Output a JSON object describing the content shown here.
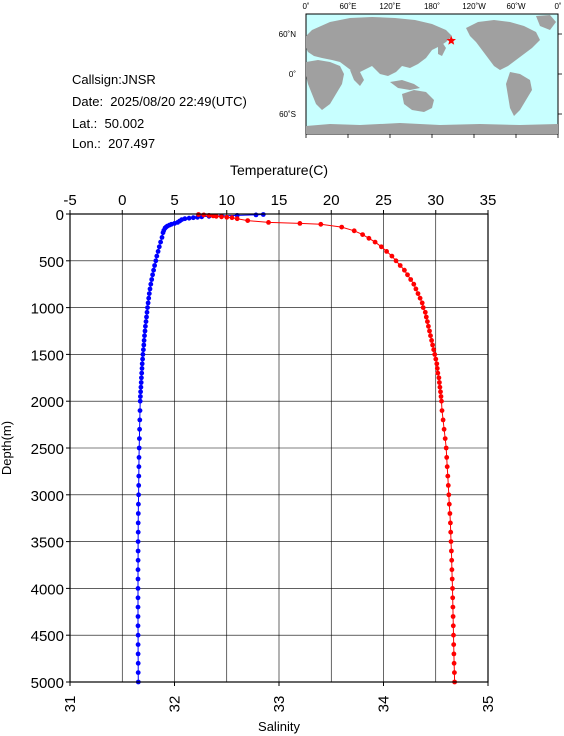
{
  "station": {
    "callsign": "Callsign:JNSR",
    "date": "Date:  2025/08/20 22:49(UTC)",
    "lat": "Lat.:  50.002",
    "lon": "Lon.:  207.497"
  },
  "map": {
    "top_labels": [
      "0˚",
      "60˚E",
      "120˚E",
      "180˚",
      "120˚W",
      "60˚W",
      "0˚"
    ],
    "left_labels": [
      "60˚N",
      "0˚",
      "60˚S"
    ],
    "ocean_color": "#c8ffff",
    "land_color": "#a0a0a0",
    "marker_color": "#ff0000",
    "marker_lat": 50.002,
    "marker_lon": 207.497
  },
  "chart_data": {
    "type": "scatter",
    "top_axis": {
      "label": "Temperature(C)",
      "range": [
        -5,
        35
      ],
      "ticks": [
        "-5",
        "0",
        "5",
        "10",
        "15",
        "20",
        "25",
        "30",
        "35"
      ],
      "tick_values": [
        -5,
        0,
        5,
        10,
        15,
        20,
        25,
        30,
        35
      ]
    },
    "bottom_axis": {
      "label": "Salinity",
      "range": [
        31,
        35
      ],
      "ticks": [
        "31",
        "32",
        "33",
        "34",
        "35"
      ],
      "tick_values": [
        31,
        32,
        33,
        34,
        35
      ]
    },
    "y_axis": {
      "label": "Depth(m)",
      "range": [
        0,
        5000
      ],
      "inverted": true,
      "ticks": [
        "0",
        "500",
        "1000",
        "1500",
        "2000",
        "2500",
        "3000",
        "3500",
        "4000",
        "4500",
        "5000"
      ],
      "tick_values": [
        0,
        500,
        1000,
        1500,
        2000,
        2500,
        3000,
        3500,
        4000,
        4500,
        5000
      ]
    },
    "grid": true,
    "series": [
      {
        "axis": "temperature",
        "color": "#0000ff",
        "points": [
          [
            13.5,
            5
          ],
          [
            12.8,
            10
          ],
          [
            11,
            15
          ],
          [
            9.5,
            20
          ],
          [
            8.3,
            25
          ],
          [
            7.6,
            30
          ],
          [
            7.2,
            35
          ],
          [
            6.8,
            40
          ],
          [
            6.4,
            45
          ],
          [
            6.0,
            50
          ],
          [
            5.7,
            60
          ],
          [
            5.5,
            75
          ],
          [
            5.3,
            90
          ],
          [
            5.0,
            100
          ],
          [
            4.7,
            110
          ],
          [
            4.5,
            120
          ],
          [
            4.3,
            130
          ],
          [
            4.2,
            140
          ],
          [
            4.1,
            150
          ],
          [
            3.98,
            175
          ],
          [
            3.9,
            200
          ],
          [
            3.8,
            250
          ],
          [
            3.67,
            300
          ],
          [
            3.55,
            350
          ],
          [
            3.43,
            400
          ],
          [
            3.31,
            450
          ],
          [
            3.21,
            500
          ],
          [
            3.1,
            550
          ],
          [
            3.0,
            600
          ],
          [
            2.9,
            650
          ],
          [
            2.82,
            700
          ],
          [
            2.73,
            750
          ],
          [
            2.66,
            800
          ],
          [
            2.59,
            850
          ],
          [
            2.53,
            900
          ],
          [
            2.47,
            950
          ],
          [
            2.42,
            1000
          ],
          [
            2.37,
            1050
          ],
          [
            2.32,
            1100
          ],
          [
            2.27,
            1150
          ],
          [
            2.22,
            1200
          ],
          [
            2.18,
            1250
          ],
          [
            2.13,
            1300
          ],
          [
            2.09,
            1350
          ],
          [
            2.06,
            1400
          ],
          [
            2.02,
            1450
          ],
          [
            1.98,
            1500
          ],
          [
            1.95,
            1550
          ],
          [
            1.91,
            1600
          ],
          [
            1.89,
            1650
          ],
          [
            1.86,
            1700
          ],
          [
            1.83,
            1750
          ],
          [
            1.81,
            1800
          ],
          [
            1.78,
            1850
          ],
          [
            1.76,
            1900
          ],
          [
            1.74,
            1950
          ],
          [
            1.72,
            2000
          ],
          [
            1.7,
            2100
          ],
          [
            1.68,
            2200
          ],
          [
            1.66,
            2300
          ],
          [
            1.64,
            2400
          ],
          [
            1.62,
            2500
          ],
          [
            1.6,
            2600
          ],
          [
            1.59,
            2700
          ],
          [
            1.58,
            2800
          ],
          [
            1.57,
            2900
          ],
          [
            1.56,
            3000
          ],
          [
            1.55,
            3100
          ],
          [
            1.54,
            3200
          ],
          [
            1.53,
            3300
          ],
          [
            1.53,
            3400
          ],
          [
            1.52,
            3500
          ],
          [
            1.52,
            3600
          ],
          [
            1.52,
            3700
          ],
          [
            1.51,
            3800
          ],
          [
            1.51,
            3900
          ],
          [
            1.51,
            4000
          ],
          [
            1.51,
            4100
          ],
          [
            1.51,
            4200
          ],
          [
            1.51,
            4300
          ],
          [
            1.51,
            4400
          ],
          [
            1.52,
            4500
          ],
          [
            1.52,
            4600
          ],
          [
            1.52,
            4700
          ],
          [
            1.53,
            4800
          ],
          [
            1.53,
            4900
          ],
          [
            1.54,
            5000
          ]
        ]
      },
      {
        "axis": "salinity",
        "color": "#ff0000",
        "points": [
          [
            32.23,
            5
          ],
          [
            32.28,
            10
          ],
          [
            32.33,
            15
          ],
          [
            32.37,
            20
          ],
          [
            32.4,
            25
          ],
          [
            32.45,
            30
          ],
          [
            32.5,
            35
          ],
          [
            32.55,
            40
          ],
          [
            32.6,
            50
          ],
          [
            32.7,
            70
          ],
          [
            32.9,
            90
          ],
          [
            33.2,
            100
          ],
          [
            33.4,
            110
          ],
          [
            33.6,
            140
          ],
          [
            33.72,
            180
          ],
          [
            33.8,
            220
          ],
          [
            33.86,
            260
          ],
          [
            33.92,
            300
          ],
          [
            33.98,
            350
          ],
          [
            34.03,
            400
          ],
          [
            34.08,
            450
          ],
          [
            34.12,
            500
          ],
          [
            34.16,
            550
          ],
          [
            34.2,
            600
          ],
          [
            34.23,
            650
          ],
          [
            34.26,
            700
          ],
          [
            34.29,
            750
          ],
          [
            34.31,
            800
          ],
          [
            34.33,
            850
          ],
          [
            34.35,
            900
          ],
          [
            34.37,
            950
          ],
          [
            34.38,
            1000
          ],
          [
            34.4,
            1050
          ],
          [
            34.41,
            1100
          ],
          [
            34.42,
            1150
          ],
          [
            34.43,
            1200
          ],
          [
            34.44,
            1250
          ],
          [
            34.45,
            1300
          ],
          [
            34.46,
            1350
          ],
          [
            34.47,
            1400
          ],
          [
            34.48,
            1450
          ],
          [
            34.49,
            1500
          ],
          [
            34.5,
            1550
          ],
          [
            34.51,
            1600
          ],
          [
            34.515,
            1650
          ],
          [
            34.52,
            1700
          ],
          [
            34.53,
            1750
          ],
          [
            34.535,
            1800
          ],
          [
            34.54,
            1850
          ],
          [
            34.545,
            1900
          ],
          [
            34.55,
            1950
          ],
          [
            34.555,
            2000
          ],
          [
            34.56,
            2100
          ],
          [
            34.57,
            2200
          ],
          [
            34.58,
            2300
          ],
          [
            34.59,
            2400
          ],
          [
            34.6,
            2500
          ],
          [
            34.605,
            2600
          ],
          [
            34.61,
            2700
          ],
          [
            34.615,
            2800
          ],
          [
            34.62,
            2900
          ],
          [
            34.625,
            3000
          ],
          [
            34.63,
            3100
          ],
          [
            34.635,
            3200
          ],
          [
            34.64,
            3300
          ],
          [
            34.643,
            3400
          ],
          [
            34.646,
            3500
          ],
          [
            34.65,
            3600
          ],
          [
            34.653,
            3700
          ],
          [
            34.655,
            3800
          ],
          [
            34.657,
            3900
          ],
          [
            34.66,
            4000
          ],
          [
            34.662,
            4100
          ],
          [
            34.664,
            4200
          ],
          [
            34.666,
            4300
          ],
          [
            34.668,
            4400
          ],
          [
            34.67,
            4500
          ],
          [
            34.672,
            4600
          ],
          [
            34.674,
            4700
          ],
          [
            34.676,
            4800
          ],
          [
            34.678,
            4900
          ],
          [
            34.68,
            5000
          ]
        ]
      }
    ]
  }
}
